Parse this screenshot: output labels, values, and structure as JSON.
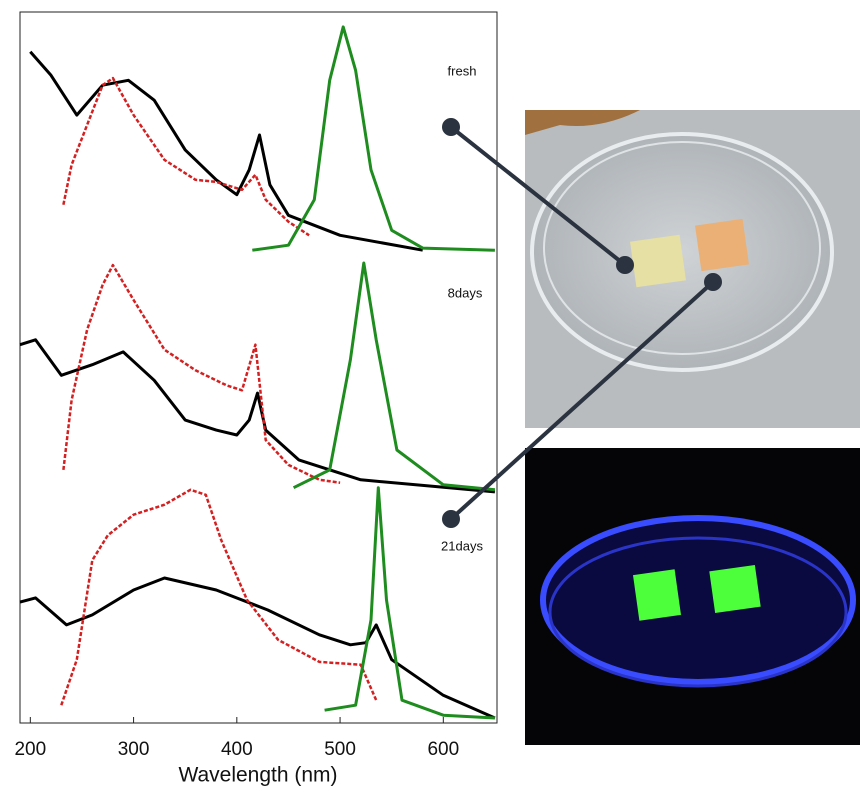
{
  "chart_data": {
    "type": "line",
    "xlabel": "Wavelength (nm)",
    "annotations": [
      "fresh",
      "8days",
      "21days"
    ],
    "xlim": [
      190,
      652
    ],
    "ylim": [
      0,
      100
    ],
    "xticks": [
      200,
      300,
      400,
      500,
      600
    ],
    "series": [
      {
        "color": "#000000",
        "dashed": false,
        "x": [
          200,
          220,
          245,
          270,
          295,
          320,
          350,
          380,
          400,
          412,
          422,
          432,
          450,
          500,
          580
        ],
        "values": [
          94.4,
          91.1,
          85.5,
          89.7,
          90.4,
          87.6,
          80.6,
          76.4,
          74.3,
          77.8,
          82.7,
          75.7,
          71.4,
          68.6,
          66.5
        ]
      },
      {
        "color": "#d42020",
        "dashed": true,
        "x": [
          232,
          240,
          255,
          270,
          280,
          300,
          330,
          360,
          380,
          405,
          418,
          428,
          450,
          470
        ],
        "values": [
          72.9,
          78.5,
          84.1,
          89.7,
          90.7,
          85.5,
          79.2,
          76.4,
          76.1,
          75,
          77.1,
          73.6,
          70.5,
          68.6
        ]
      },
      {
        "color": "#1e8c1e",
        "dashed": false,
        "x": [
          415,
          450,
          475,
          490,
          503,
          515,
          530,
          550,
          580,
          650
        ],
        "values": [
          66.5,
          67.2,
          73.6,
          90.4,
          97.9,
          91.8,
          77.8,
          69.3,
          66.8,
          66.5
        ]
      },
      {
        "color": "#000000",
        "dashed": false,
        "x": [
          190,
          205,
          230,
          260,
          290,
          320,
          350,
          380,
          400,
          412,
          420,
          428,
          460,
          520,
          650
        ],
        "values": [
          53.2,
          53.9,
          48.9,
          50.4,
          52.2,
          48.2,
          42.6,
          41.2,
          40.5,
          42.6,
          46.4,
          41.2,
          37,
          34.2,
          32.5
        ]
      },
      {
        "color": "#d42020",
        "dashed": true,
        "x": [
          232,
          240,
          255,
          270,
          280,
          300,
          330,
          360,
          390,
          405,
          418,
          428,
          450,
          480,
          500
        ],
        "values": [
          35.6,
          45.4,
          55.3,
          61.6,
          64.4,
          59.5,
          52.5,
          49.6,
          47.5,
          46.8,
          53.2,
          39.8,
          36.3,
          34.2,
          33.8
        ]
      },
      {
        "color": "#1e8c1e",
        "dashed": false,
        "x": [
          455,
          490,
          510,
          523,
          535,
          555,
          600,
          650
        ],
        "values": [
          33.1,
          35.6,
          51.1,
          64.7,
          53.9,
          38.4,
          33.5,
          32.8
        ]
      },
      {
        "color": "#000000",
        "dashed": false,
        "x": [
          190,
          205,
          235,
          260,
          300,
          330,
          380,
          430,
          480,
          510,
          525,
          535,
          550,
          600,
          650
        ],
        "values": [
          17,
          17.6,
          13.8,
          15.2,
          18.7,
          20.4,
          18.7,
          15.9,
          12.4,
          11,
          11.3,
          13.8,
          8.9,
          3.9,
          0.7
        ]
      },
      {
        "color": "#d42020",
        "dashed": true,
        "x": [
          230,
          245,
          260,
          275,
          300,
          330,
          355,
          370,
          385,
          410,
          440,
          480,
          520,
          535
        ],
        "values": [
          2.5,
          8.9,
          22.9,
          26.4,
          29.3,
          30.7,
          32.8,
          32.1,
          25.7,
          17.3,
          11.7,
          8.6,
          8.2,
          3.2
        ]
      },
      {
        "color": "#1e8c1e",
        "dashed": false,
        "x": [
          485,
          515,
          530,
          537,
          545,
          560,
          600,
          650
        ],
        "values": [
          1.8,
          2.5,
          14.5,
          33.1,
          17.3,
          3.2,
          1.1,
          0.7
        ]
      }
    ]
  }
}
